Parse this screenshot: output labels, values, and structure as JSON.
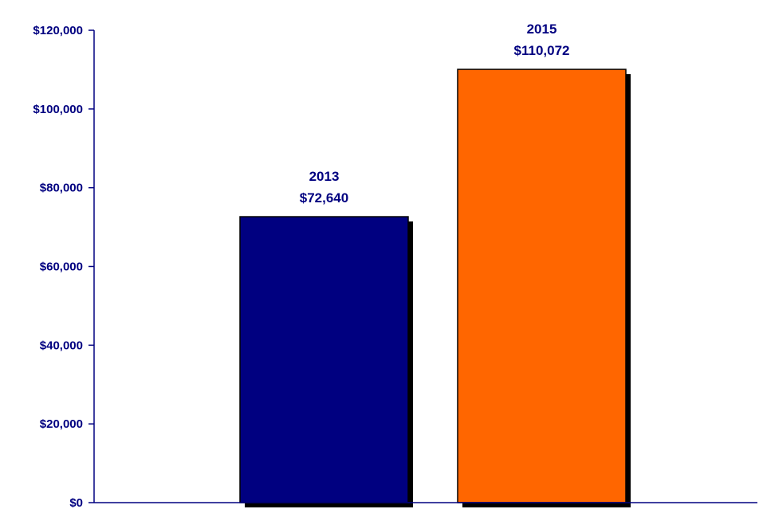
{
  "chart_data": {
    "type": "bar",
    "categories": [
      "2013",
      "2015"
    ],
    "values": [
      72640,
      110072
    ],
    "value_labels": [
      "$72,640",
      "$110,072"
    ],
    "colors": [
      "#000080",
      "#ff6600"
    ],
    "shadow_color": "#000000",
    "axis_color": "#000080",
    "title": "",
    "xlabel": "",
    "ylabel": "",
    "ylim": [
      0,
      120000
    ],
    "y_ticks": [
      0,
      20000,
      40000,
      60000,
      80000,
      100000,
      120000
    ],
    "y_tick_labels": [
      "$0",
      "$20,000",
      "$40,000",
      "$60,000",
      "$80,000",
      "$100,000",
      "$120,000"
    ],
    "grid": false,
    "legend": "none"
  }
}
